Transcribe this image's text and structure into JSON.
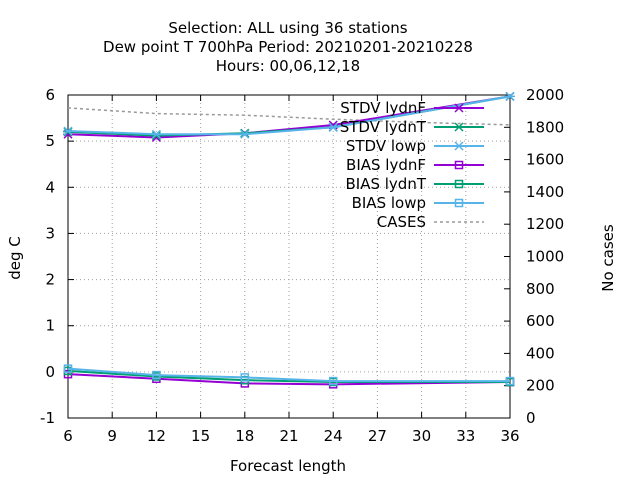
{
  "chart_data": {
    "type": "line",
    "title_lines": [
      "Selection: ALL using    36 stations",
      "Dew point T 700hPa   Period: 20210201-20210228",
      "Hours:  00,06,12,18"
    ],
    "xlabel": "Forecast length",
    "ylabel": "deg C",
    "y2label": "No cases",
    "xlim": [
      6,
      36
    ],
    "ylim": [
      -1,
      6
    ],
    "y2lim": [
      0,
      2000
    ],
    "x_ticks": [
      6,
      9,
      12,
      15,
      18,
      21,
      24,
      27,
      30,
      33,
      36
    ],
    "y_ticks": [
      -1,
      0,
      1,
      2,
      3,
      4,
      5,
      6
    ],
    "y2_ticks": [
      0,
      200,
      400,
      600,
      800,
      1000,
      1200,
      1400,
      1600,
      1800,
      2000
    ],
    "grid": true,
    "legend_position": "top-right",
    "series": [
      {
        "name": "STDV lydnF",
        "color": "#9400d3",
        "marker": "x",
        "axis": "y",
        "x": [
          6,
          12,
          18,
          24,
          36
        ],
        "y": [
          5.15,
          5.08,
          5.17,
          5.35,
          5.97
        ],
        "width": 2
      },
      {
        "name": "STDV lydnT",
        "color": "#009e73",
        "marker": "x",
        "axis": "y",
        "x": [
          6,
          12,
          18,
          24,
          36
        ],
        "y": [
          5.2,
          5.12,
          5.17,
          5.3,
          5.97
        ],
        "width": 2
      },
      {
        "name": "STDV lowp",
        "color": "#56b4e9",
        "marker": "x",
        "axis": "y",
        "x": [
          6,
          12,
          18,
          24,
          36
        ],
        "y": [
          5.22,
          5.15,
          5.15,
          5.3,
          5.97
        ],
        "width": 2
      },
      {
        "name": "BIAS lydnF",
        "color": "#9400d3",
        "marker": "square",
        "axis": "y",
        "x": [
          6,
          12,
          18,
          24,
          36
        ],
        "y": [
          -0.05,
          -0.15,
          -0.25,
          -0.27,
          -0.22
        ],
        "width": 2
      },
      {
        "name": "BIAS lydnT",
        "color": "#009e73",
        "marker": "square",
        "axis": "y",
        "x": [
          6,
          12,
          18,
          24,
          36
        ],
        "y": [
          0.02,
          -0.1,
          -0.18,
          -0.22,
          -0.22
        ],
        "width": 2
      },
      {
        "name": "BIAS lowp",
        "color": "#56b4e9",
        "marker": "square",
        "axis": "y",
        "x": [
          6,
          12,
          18,
          24,
          36
        ],
        "y": [
          0.07,
          -0.07,
          -0.12,
          -0.2,
          -0.2
        ],
        "width": 2
      },
      {
        "name": "CASES",
        "color": "#999999",
        "marker": "none",
        "axis": "y2",
        "dashed": true,
        "x": [
          6,
          12,
          18,
          24,
          30,
          36
        ],
        "y": [
          1920,
          1885,
          1875,
          1850,
          1830,
          1815
        ],
        "width": 1.5
      }
    ]
  }
}
